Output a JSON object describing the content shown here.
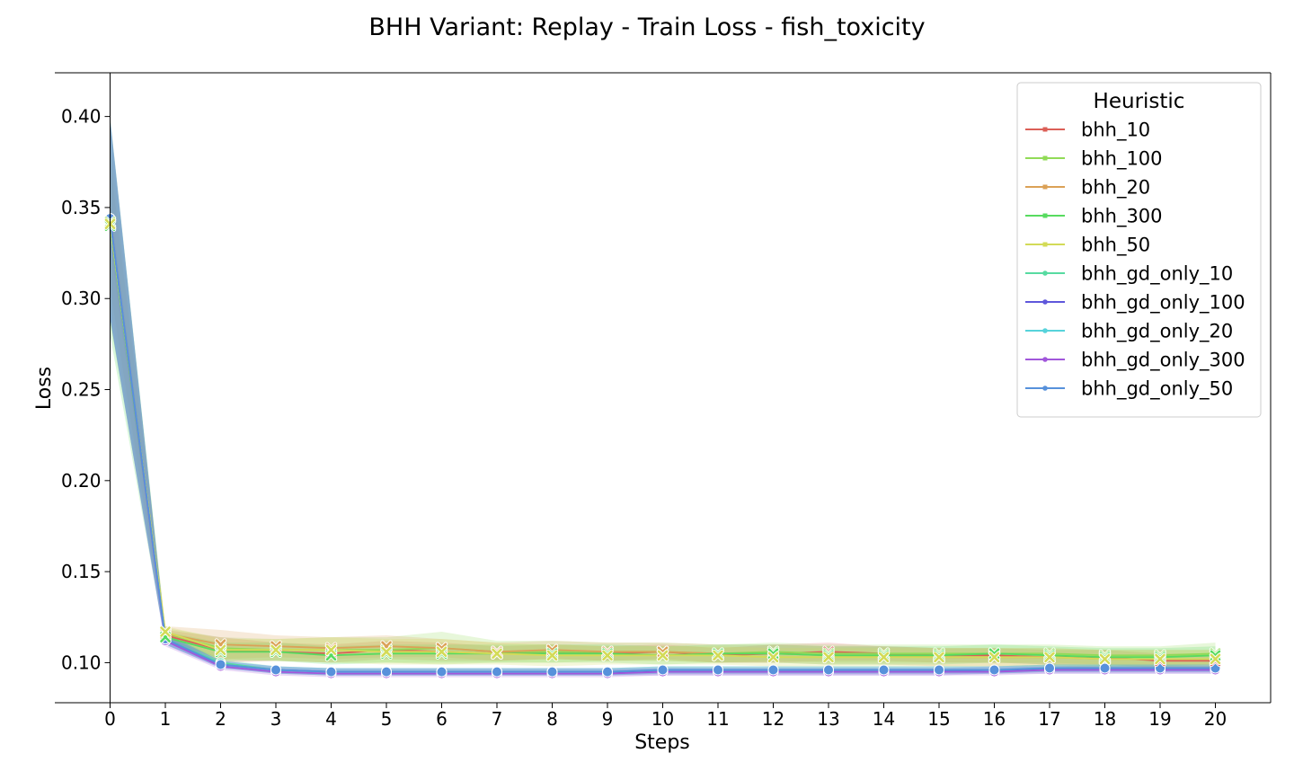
{
  "chart_data": {
    "type": "line",
    "title": "BHH Variant: Replay - Train Loss - fish_toxicity",
    "xlabel": "Steps",
    "ylabel": "Loss",
    "xlim": [
      -1,
      21
    ],
    "ylim": [
      0.078,
      0.424
    ],
    "x_ticks": [
      "0",
      "1",
      "2",
      "3",
      "4",
      "5",
      "6",
      "7",
      "8",
      "9",
      "10",
      "11",
      "12",
      "13",
      "14",
      "15",
      "16",
      "17",
      "18",
      "19",
      "20"
    ],
    "y_ticks": [
      "0.10",
      "0.15",
      "0.20",
      "0.25",
      "0.30",
      "0.35",
      "0.40"
    ],
    "grid": false,
    "legend": {
      "title": "Heuristic",
      "placement": "top-right"
    },
    "x": [
      0,
      1,
      2,
      3,
      4,
      5,
      6,
      7,
      8,
      9,
      10,
      11,
      12,
      13,
      14,
      15,
      16,
      17,
      18,
      19,
      20
    ],
    "series": [
      {
        "name": "bhh_10",
        "color": "#db5f57",
        "marker": "x",
        "values": [
          0.341,
          0.115,
          0.107,
          0.106,
          0.105,
          0.107,
          0.106,
          0.105,
          0.106,
          0.105,
          0.106,
          0.104,
          0.105,
          0.106,
          0.105,
          0.104,
          0.104,
          0.103,
          0.103,
          0.101,
          0.101
        ],
        "band": [
          0.012,
          0.003,
          0.007,
          0.005,
          0.005,
          0.005,
          0.005,
          0.004,
          0.004,
          0.004,
          0.004,
          0.004,
          0.005,
          0.005,
          0.004,
          0.004,
          0.004,
          0.004,
          0.004,
          0.004,
          0.004
        ]
      },
      {
        "name": "bhh_100",
        "color": "#91db57",
        "marker": "x",
        "values": [
          0.342,
          0.116,
          0.108,
          0.107,
          0.107,
          0.107,
          0.108,
          0.106,
          0.106,
          0.106,
          0.106,
          0.105,
          0.106,
          0.105,
          0.105,
          0.105,
          0.105,
          0.105,
          0.104,
          0.104,
          0.105
        ],
        "band": [
          0.055,
          0.003,
          0.006,
          0.006,
          0.007,
          0.007,
          0.009,
          0.006,
          0.006,
          0.005,
          0.005,
          0.005,
          0.005,
          0.005,
          0.005,
          0.005,
          0.005,
          0.005,
          0.005,
          0.005,
          0.006
        ]
      },
      {
        "name": "bhh_20",
        "color": "#dba157",
        "marker": "x",
        "values": [
          0.341,
          0.116,
          0.11,
          0.109,
          0.108,
          0.109,
          0.108,
          0.106,
          0.107,
          0.106,
          0.106,
          0.105,
          0.105,
          0.104,
          0.104,
          0.103,
          0.103,
          0.103,
          0.102,
          0.102,
          0.102
        ],
        "band": [
          0.035,
          0.004,
          0.008,
          0.006,
          0.006,
          0.006,
          0.005,
          0.005,
          0.005,
          0.005,
          0.005,
          0.005,
          0.005,
          0.005,
          0.005,
          0.005,
          0.005,
          0.005,
          0.005,
          0.005,
          0.005
        ]
      },
      {
        "name": "bhh_300",
        "color": "#57db5f",
        "marker": "x",
        "values": [
          0.34,
          0.114,
          0.106,
          0.106,
          0.104,
          0.105,
          0.105,
          0.105,
          0.105,
          0.105,
          0.104,
          0.105,
          0.105,
          0.104,
          0.104,
          0.104,
          0.105,
          0.104,
          0.103,
          0.103,
          0.104
        ],
        "band": [
          0.06,
          0.003,
          0.005,
          0.005,
          0.005,
          0.005,
          0.005,
          0.005,
          0.005,
          0.005,
          0.005,
          0.005,
          0.005,
          0.005,
          0.005,
          0.005,
          0.005,
          0.005,
          0.005,
          0.005,
          0.005
        ]
      },
      {
        "name": "bhh_50",
        "color": "#d3db57",
        "marker": "x",
        "values": [
          0.341,
          0.117,
          0.107,
          0.107,
          0.107,
          0.106,
          0.106,
          0.105,
          0.104,
          0.104,
          0.104,
          0.104,
          0.103,
          0.103,
          0.103,
          0.103,
          0.103,
          0.103,
          0.102,
          0.102,
          0.102
        ],
        "band": [
          0.045,
          0.003,
          0.006,
          0.006,
          0.007,
          0.007,
          0.007,
          0.006,
          0.006,
          0.005,
          0.005,
          0.005,
          0.005,
          0.005,
          0.005,
          0.005,
          0.005,
          0.005,
          0.005,
          0.005,
          0.005
        ]
      },
      {
        "name": "bhh_gd_only_10",
        "color": "#57dba1",
        "marker": "o",
        "values": [
          0.344,
          0.113,
          0.1,
          0.096,
          0.095,
          0.095,
          0.095,
          0.095,
          0.095,
          0.095,
          0.096,
          0.096,
          0.096,
          0.096,
          0.096,
          0.096,
          0.096,
          0.097,
          0.097,
          0.097,
          0.097
        ],
        "band": [
          0.055,
          0.003,
          0.002,
          0.002,
          0.002,
          0.002,
          0.002,
          0.002,
          0.002,
          0.002,
          0.002,
          0.002,
          0.002,
          0.002,
          0.002,
          0.002,
          0.002,
          0.002,
          0.002,
          0.002,
          0.002
        ]
      },
      {
        "name": "bhh_gd_only_100",
        "color": "#5f57db",
        "marker": "o",
        "values": [
          0.344,
          0.113,
          0.099,
          0.096,
          0.095,
          0.095,
          0.095,
          0.095,
          0.095,
          0.095,
          0.095,
          0.095,
          0.095,
          0.095,
          0.095,
          0.095,
          0.096,
          0.096,
          0.096,
          0.096,
          0.096
        ],
        "band": [
          0.055,
          0.003,
          0.002,
          0.002,
          0.002,
          0.002,
          0.002,
          0.002,
          0.002,
          0.002,
          0.002,
          0.002,
          0.002,
          0.002,
          0.002,
          0.002,
          0.002,
          0.002,
          0.002,
          0.002,
          0.002
        ]
      },
      {
        "name": "bhh_gd_only_20",
        "color": "#57d3db",
        "marker": "o",
        "values": [
          0.344,
          0.113,
          0.099,
          0.096,
          0.095,
          0.095,
          0.095,
          0.095,
          0.095,
          0.095,
          0.096,
          0.096,
          0.096,
          0.096,
          0.096,
          0.096,
          0.096,
          0.097,
          0.097,
          0.097,
          0.097
        ],
        "band": [
          0.055,
          0.003,
          0.002,
          0.002,
          0.002,
          0.002,
          0.002,
          0.002,
          0.002,
          0.002,
          0.002,
          0.002,
          0.002,
          0.002,
          0.002,
          0.002,
          0.002,
          0.002,
          0.002,
          0.002,
          0.002
        ]
      },
      {
        "name": "bhh_gd_only_300",
        "color": "#a157db",
        "marker": "o",
        "values": [
          0.344,
          0.112,
          0.098,
          0.095,
          0.094,
          0.094,
          0.094,
          0.094,
          0.094,
          0.094,
          0.095,
          0.095,
          0.095,
          0.095,
          0.095,
          0.095,
          0.095,
          0.096,
          0.096,
          0.096,
          0.096
        ],
        "band": [
          0.055,
          0.003,
          0.002,
          0.002,
          0.002,
          0.002,
          0.002,
          0.002,
          0.002,
          0.002,
          0.002,
          0.002,
          0.002,
          0.002,
          0.002,
          0.002,
          0.002,
          0.002,
          0.002,
          0.002,
          0.002
        ]
      },
      {
        "name": "bhh_gd_only_50",
        "color": "#5791db",
        "marker": "o",
        "values": [
          0.344,
          0.113,
          0.099,
          0.096,
          0.095,
          0.095,
          0.095,
          0.095,
          0.095,
          0.095,
          0.096,
          0.096,
          0.096,
          0.096,
          0.096,
          0.096,
          0.096,
          0.097,
          0.097,
          0.097,
          0.097
        ],
        "band": [
          0.055,
          0.003,
          0.002,
          0.002,
          0.002,
          0.002,
          0.002,
          0.002,
          0.002,
          0.002,
          0.002,
          0.002,
          0.002,
          0.002,
          0.002,
          0.002,
          0.002,
          0.002,
          0.002,
          0.002,
          0.002
        ]
      }
    ]
  }
}
